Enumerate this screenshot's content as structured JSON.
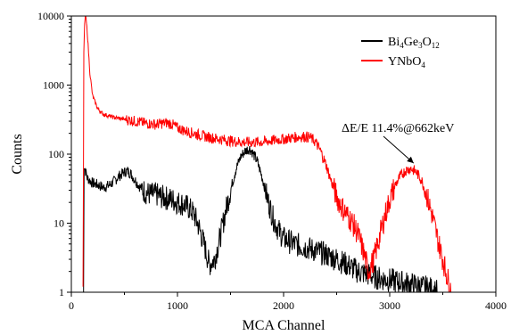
{
  "chart_data": {
    "type": "line",
    "xlabel": "MCA Channel",
    "ylabel": "Counts",
    "xlim": [
      0,
      4000
    ],
    "ylim": [
      1,
      10000
    ],
    "yscale": "log",
    "xticks": [
      0,
      1000,
      2000,
      3000,
      4000
    ],
    "xtick_labels": [
      "0",
      "1000",
      "2000",
      "3000",
      "4000"
    ],
    "yticks": [
      1,
      10,
      100,
      1000,
      10000
    ],
    "ytick_labels": [
      "1",
      "10",
      "100",
      "1000",
      "10000"
    ],
    "grid": false,
    "legend_position": "top-right",
    "series": [
      {
        "name_parts": [
          [
            "Bi",
            ""
          ],
          [
            "4",
            "sub"
          ],
          [
            "Ge",
            ""
          ],
          [
            "3",
            "sub"
          ],
          [
            "O",
            ""
          ],
          [
            "12",
            "sub"
          ]
        ],
        "color": "#000000",
        "points": [
          [
            115,
            1
          ],
          [
            120,
            70
          ],
          [
            130,
            60
          ],
          [
            150,
            45
          ],
          [
            200,
            38
          ],
          [
            250,
            36
          ],
          [
            300,
            33
          ],
          [
            350,
            35
          ],
          [
            400,
            40
          ],
          [
            450,
            48
          ],
          [
            500,
            55
          ],
          [
            530,
            57
          ],
          [
            560,
            52
          ],
          [
            600,
            42
          ],
          [
            650,
            33
          ],
          [
            700,
            28
          ],
          [
            750,
            26
          ],
          [
            800,
            26
          ],
          [
            850,
            24
          ],
          [
            900,
            23
          ],
          [
            950,
            22
          ],
          [
            1000,
            20
          ],
          [
            1050,
            19
          ],
          [
            1100,
            17
          ],
          [
            1150,
            14
          ],
          [
            1200,
            9
          ],
          [
            1250,
            5
          ],
          [
            1300,
            2.5
          ],
          [
            1350,
            3
          ],
          [
            1400,
            6
          ],
          [
            1450,
            14
          ],
          [
            1500,
            30
          ],
          [
            1550,
            60
          ],
          [
            1600,
            95
          ],
          [
            1650,
            115
          ],
          [
            1680,
            120
          ],
          [
            1700,
            110
          ],
          [
            1750,
            80
          ],
          [
            1800,
            45
          ],
          [
            1850,
            22
          ],
          [
            1900,
            12
          ],
          [
            1950,
            8
          ],
          [
            2000,
            6
          ],
          [
            2100,
            5
          ],
          [
            2200,
            4.5
          ],
          [
            2300,
            4
          ],
          [
            2400,
            3.5
          ],
          [
            2500,
            3
          ],
          [
            2600,
            2.5
          ],
          [
            2700,
            2
          ],
          [
            2800,
            1.8
          ],
          [
            2900,
            1.6
          ],
          [
            3000,
            1.5
          ],
          [
            3100,
            1.4
          ],
          [
            3200,
            1.3
          ],
          [
            3300,
            1.2
          ],
          [
            3400,
            1.1
          ],
          [
            3450,
            1
          ]
        ]
      },
      {
        "name_parts": [
          [
            "YNbO",
            ""
          ],
          [
            "4",
            "sub"
          ]
        ],
        "color": "#ff0000",
        "points": [
          [
            110,
            1
          ],
          [
            118,
            3000
          ],
          [
            125,
            8000
          ],
          [
            135,
            10000
          ],
          [
            150,
            6000
          ],
          [
            175,
            1500
          ],
          [
            200,
            700
          ],
          [
            250,
            450
          ],
          [
            300,
            380
          ],
          [
            400,
            340
          ],
          [
            500,
            320
          ],
          [
            600,
            300
          ],
          [
            700,
            280
          ],
          [
            800,
            270
          ],
          [
            900,
            285
          ],
          [
            950,
            270
          ],
          [
            1000,
            240
          ],
          [
            1100,
            210
          ],
          [
            1200,
            190
          ],
          [
            1300,
            175
          ],
          [
            1400,
            165
          ],
          [
            1500,
            155
          ],
          [
            1600,
            150
          ],
          [
            1700,
            148
          ],
          [
            1800,
            150
          ],
          [
            1900,
            158
          ],
          [
            2000,
            165
          ],
          [
            2100,
            175
          ],
          [
            2200,
            180
          ],
          [
            2250,
            175
          ],
          [
            2300,
            150
          ],
          [
            2350,
            110
          ],
          [
            2400,
            70
          ],
          [
            2450,
            40
          ],
          [
            2500,
            24
          ],
          [
            2550,
            17
          ],
          [
            2600,
            13
          ],
          [
            2650,
            10
          ],
          [
            2700,
            7
          ],
          [
            2750,
            4
          ],
          [
            2800,
            2
          ],
          [
            2850,
            3
          ],
          [
            2900,
            6
          ],
          [
            2950,
            12
          ],
          [
            3000,
            22
          ],
          [
            3050,
            35
          ],
          [
            3100,
            48
          ],
          [
            3150,
            58
          ],
          [
            3200,
            62
          ],
          [
            3250,
            55
          ],
          [
            3300,
            42
          ],
          [
            3350,
            25
          ],
          [
            3400,
            13
          ],
          [
            3450,
            6
          ],
          [
            3500,
            3
          ],
          [
            3550,
            1.5
          ],
          [
            3580,
            1
          ]
        ]
      }
    ],
    "annotation": {
      "text": "ΔE/E   11.4%@662keV",
      "target": [
        3200,
        62
      ]
    }
  }
}
